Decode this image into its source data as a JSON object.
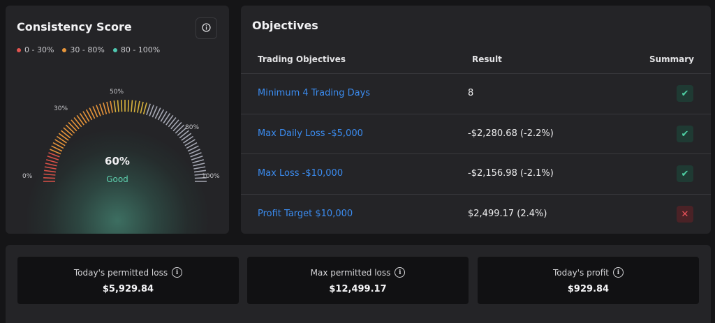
{
  "score": {
    "title": "Consistency Score",
    "info_icon": "info-icon",
    "legend": [
      {
        "label": "0 - 30%",
        "color": "#e2544f"
      },
      {
        "label": "30 - 80%",
        "color": "#e7963b"
      },
      {
        "label": "80 - 100%",
        "color": "#4fc7b0"
      }
    ],
    "gauge": {
      "value": 60,
      "value_text": "60%",
      "status": "Good",
      "ticks": [
        "0%",
        "30%",
        "50%",
        "80%",
        "100%"
      ],
      "colors": {
        "red": "#d95148",
        "orange": "#e8953a",
        "gold": "#d8b23c",
        "gray": "#a6a8b4"
      }
    }
  },
  "objectives": {
    "title": "Objectives",
    "headers": {
      "name": "Trading Objectives",
      "result": "Result",
      "summary": "Summary"
    },
    "rows": [
      {
        "name": "Minimum 4 Trading Days",
        "result": "8",
        "status": "passed",
        "icon": "check-icon"
      },
      {
        "name": "Max Daily Loss -$5,000",
        "result": "-$2,280.68 (-2.2%)",
        "status": "passed",
        "icon": "check-icon"
      },
      {
        "name": "Max Loss -$10,000",
        "result": "-$2,156.98 (-2.1%)",
        "status": "passed",
        "icon": "check-icon"
      },
      {
        "name": "Profit Target $10,000",
        "result": "$2,499.17 (2.4%)",
        "status": "failed",
        "icon": "x-icon"
      }
    ]
  },
  "stats": [
    {
      "label": "Today's permitted loss",
      "value": "$5,929.84",
      "icon": "info-icon"
    },
    {
      "label": "Max permitted loss",
      "value": "$12,499.17",
      "icon": "info-icon"
    },
    {
      "label": "Today's profit",
      "value": "$929.84",
      "icon": "info-icon"
    }
  ]
}
